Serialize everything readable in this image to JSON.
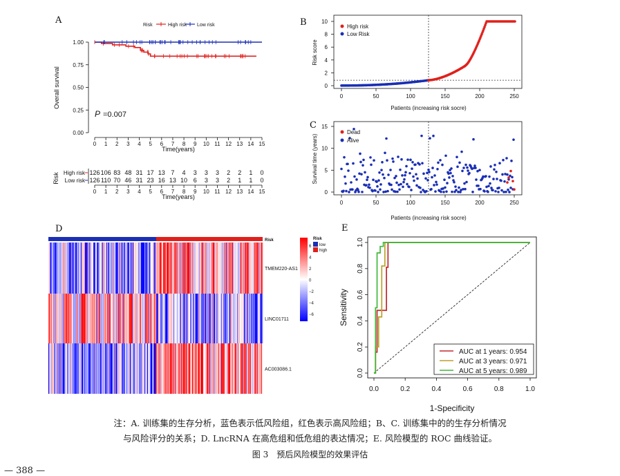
{
  "chart_data": [
    {
      "panel": "A",
      "type": "line",
      "subtype": "kaplan-meier",
      "legend_title": "Risk",
      "legend": [
        "High risk",
        "Low risk"
      ],
      "colors": {
        "high": "#e0201b",
        "low": "#1a2fb5"
      },
      "ylabel": "Overall survival",
      "xlabel": "Time(years)",
      "xticks": [
        0,
        1,
        2,
        3,
        4,
        5,
        6,
        7,
        8,
        9,
        10,
        11,
        12,
        13,
        14,
        15
      ],
      "yticks": [
        "0.00",
        "0.25",
        "0.50",
        "0.75",
        "1.00"
      ],
      "ylim": [
        0,
        1
      ],
      "xlim": [
        0,
        15
      ],
      "pvalue_label": "P",
      "pvalue_text": "=0.007",
      "series": [
        {
          "name": "High risk",
          "x": [
            0,
            0.6,
            1.6,
            2.8,
            3.6,
            4.1,
            4.4,
            4.8,
            5.0,
            14.5
          ],
          "y": [
            1.0,
            0.985,
            0.97,
            0.955,
            0.94,
            0.91,
            0.89,
            0.87,
            0.845,
            0.845
          ]
        },
        {
          "name": "Low risk",
          "x": [
            0,
            15
          ],
          "y": [
            1.0,
            1.0
          ]
        }
      ],
      "risk_table": {
        "title": "Risk",
        "rows": [
          {
            "label": "High risk",
            "values": [
              126,
              106,
              83,
              48,
              31,
              17,
              13,
              7,
              4,
              3,
              3,
              3,
              2,
              2,
              1,
              0
            ]
          },
          {
            "label": "Low risk",
            "values": [
              126,
              110,
              70,
              46,
              31,
              23,
              16,
              13,
              10,
              6,
              3,
              3,
              2,
              1,
              1,
              0
            ]
          }
        ],
        "xlabel": "Time(years)"
      }
    },
    {
      "panel": "B",
      "type": "scatter",
      "legend": [
        "High risk",
        "Low Risk"
      ],
      "xlabel": "Patients (increasing risk socre)",
      "ylabel": "Risk score",
      "xticks": [
        0,
        50,
        100,
        150,
        200,
        250
      ],
      "yticks": [
        0,
        2,
        4,
        6,
        8,
        10
      ],
      "xlim": [
        0,
        252
      ],
      "ylim": [
        0,
        10
      ],
      "cutoff_index": 126,
      "cutoff_score": 0.85,
      "n": 252
    },
    {
      "panel": "C",
      "type": "scatter",
      "legend": [
        "Dead",
        "Alive"
      ],
      "xlabel": "Patients (increasing risk socre)",
      "ylabel": "Survival time (years)",
      "xticks": [
        0,
        50,
        100,
        150,
        200,
        250
      ],
      "yticks": [
        0,
        5,
        10,
        15
      ],
      "xlim": [
        0,
        252
      ],
      "ylim": [
        0,
        15
      ],
      "cutoff_index": 126
    },
    {
      "panel": "D",
      "type": "heatmap",
      "rows": [
        "TMEM220-AS1",
        "LINC01711",
        "AC003086.1"
      ],
      "annotation_label": "Risk",
      "annotation_legend": [
        "low",
        "high"
      ],
      "colorbar_ticks": [
        "6",
        "4",
        "2",
        "0",
        "−2",
        "−4",
        "−6"
      ],
      "n_low": 126,
      "n_high": 126
    },
    {
      "panel": "E",
      "type": "line",
      "subtype": "roc",
      "xlabel": "1-Specificity",
      "ylabel": "Sensitivity",
      "xticks": [
        "0.0",
        "0.2",
        "0.4",
        "0.6",
        "0.8",
        "1.0"
      ],
      "yticks": [
        "0.0",
        "0.2",
        "0.4",
        "0.6",
        "0.8",
        "1.0"
      ],
      "series": [
        {
          "name": "AUC at 1 years: 0.954",
          "color": "#c0282d",
          "x": [
            0,
            0.01,
            0.01,
            0.02,
            0.02,
            0.08,
            0.08,
            0.09,
            0.09,
            1
          ],
          "y": [
            0,
            0,
            0.16,
            0.16,
            0.48,
            0.48,
            0.81,
            0.81,
            1,
            1
          ]
        },
        {
          "name": "AUC at 3 years: 0.971",
          "color": "#b8a22a",
          "x": [
            0,
            0.01,
            0.01,
            0.03,
            0.03,
            0.05,
            0.05,
            0.07,
            0.07,
            1
          ],
          "y": [
            0,
            0,
            0.2,
            0.2,
            0.43,
            0.43,
            0.82,
            0.82,
            1,
            1
          ]
        },
        {
          "name": "AUC at 5 years: 0.989",
          "color": "#3fb83a",
          "x": [
            0,
            0.01,
            0.01,
            0.02,
            0.02,
            0.04,
            0.04,
            0.06,
            0.06,
            1
          ],
          "y": [
            0,
            0,
            0.5,
            0.5,
            0.92,
            0.92,
            0.97,
            0.97,
            1,
            1
          ]
        }
      ]
    }
  ],
  "captions": {
    "line1": "注：A. 训练集的生存分析，蓝色表示低风险组，红色表示高风险组；B、C. 训练集中的的生存分析情况",
    "line2": "与风险评分的关系；D. LncRNA 在高危组和低危组的表达情况；E. 风险模型的 ROC 曲线验证。",
    "figure": "图 3　预后风险模型的效果评估",
    "page": "— 388 —"
  }
}
